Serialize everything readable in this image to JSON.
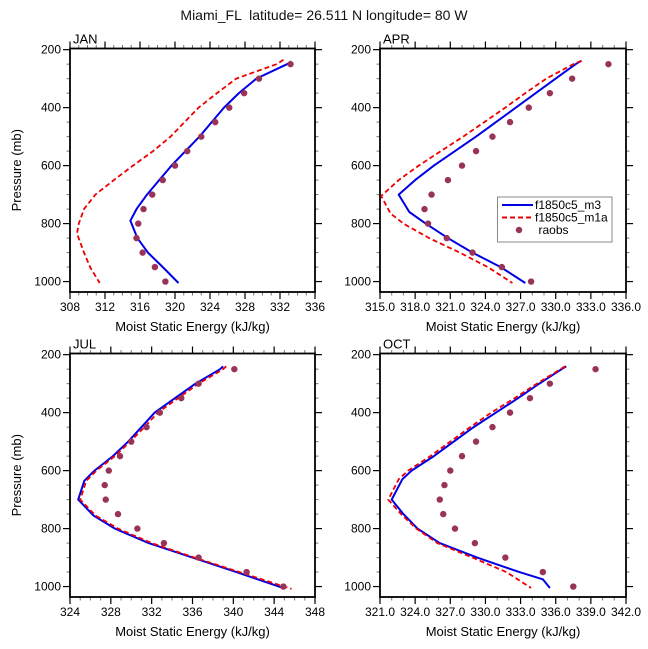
{
  "header": {
    "title": "Miami_FL  latitude= 26.511 N longitude= 80 W"
  },
  "legend": {
    "entries": [
      {
        "label": "f1850c5_m3",
        "color": "#0000e6",
        "marker": "solid-line"
      },
      {
        "label": "f1850c5_m1a",
        "color": "#ee0000",
        "marker": "dashed-line"
      },
      {
        "label": "raobs",
        "color": "#993357",
        "marker": "dot"
      }
    ],
    "location": "inside APR panel, right-center"
  },
  "axes": {
    "pressure_major_ticks": [
      200,
      400,
      600,
      800,
      1000
    ],
    "pressure_minor_step": 50,
    "ytick_labels": [
      "200",
      "400",
      "600",
      "800",
      "1000"
    ]
  },
  "chart_data": [
    {
      "type": "line",
      "title": "JAN",
      "xlabel": "Moist Static Energy (kJ/kg)",
      "ylabel": "Pressure (mb)",
      "xlim": [
        308,
        336
      ],
      "xtick_labels": [
        "308",
        "312",
        "316",
        "320",
        "324",
        "328",
        "332",
        "336"
      ],
      "xtick_minor_step": 1,
      "ylim": [
        200,
        1000
      ],
      "y_axis_inverted": true,
      "series": [
        {
          "name": "f1850c5_m3",
          "style": "solid",
          "color": "#0000e6",
          "points": [
            [
              240,
              333.3
            ],
            [
              250,
              332.8
            ],
            [
              300,
              329.3
            ],
            [
              350,
              327.3
            ],
            [
              400,
              325.6
            ],
            [
              450,
              324.2
            ],
            [
              500,
              322.8
            ],
            [
              550,
              321.2
            ],
            [
              600,
              319.6
            ],
            [
              650,
              318.2
            ],
            [
              700,
              316.8
            ],
            [
              750,
              315.6
            ],
            [
              790,
              314.9
            ],
            [
              850,
              315.7
            ],
            [
              900,
              316.9
            ],
            [
              950,
              318.6
            ],
            [
              1005,
              320.4
            ]
          ]
        },
        {
          "name": "f1850c5_m1a",
          "style": "dashed",
          "color": "#ee0000",
          "points": [
            [
              235,
              332.4
            ],
            [
              250,
              331.6
            ],
            [
              300,
              327.0
            ],
            [
              350,
              324.8
            ],
            [
              400,
              322.7
            ],
            [
              450,
              321.1
            ],
            [
              500,
              319.5
            ],
            [
              550,
              317.5
            ],
            [
              600,
              315.2
            ],
            [
              650,
              313.0
            ],
            [
              700,
              310.9
            ],
            [
              750,
              309.6
            ],
            [
              800,
              309.0
            ],
            [
              835,
              308.8
            ],
            [
              900,
              309.6
            ],
            [
              950,
              310.3
            ],
            [
              1005,
              311.4
            ]
          ]
        },
        {
          "name": "raobs",
          "style": "scatter",
          "color": "#993357",
          "points": [
            [
              250,
              333.2
            ],
            [
              300,
              329.6
            ],
            [
              350,
              327.9
            ],
            [
              400,
              326.2
            ],
            [
              450,
              324.6
            ],
            [
              500,
              323.0
            ],
            [
              550,
              321.4
            ],
            [
              600,
              320.0
            ],
            [
              650,
              318.6
            ],
            [
              700,
              317.4
            ],
            [
              750,
              316.4
            ],
            [
              800,
              315.8
            ],
            [
              850,
              315.6
            ],
            [
              900,
              316.3
            ],
            [
              950,
              317.7
            ],
            [
              1000,
              318.9
            ]
          ]
        }
      ]
    },
    {
      "type": "line",
      "title": "APR",
      "xlabel": "Moist Static Energy (kJ/kg)",
      "ylabel": "Pressure (mb)",
      "xlim": [
        315,
        336
      ],
      "xtick_labels": [
        "315.0",
        "318.0",
        "321.0",
        "324.0",
        "327.0",
        "330.0",
        "333.0",
        "336.0"
      ],
      "xtick_minor_step": 1,
      "ylim": [
        200,
        1000
      ],
      "y_axis_inverted": true,
      "series": [
        {
          "name": "f1850c5_m3",
          "style": "solid",
          "color": "#0000e6",
          "points": [
            [
              238,
              332.2
            ],
            [
              250,
              331.7
            ],
            [
              300,
              330.0
            ],
            [
              350,
              328.3
            ],
            [
              400,
              326.6
            ],
            [
              450,
              324.9
            ],
            [
              500,
              323.2
            ],
            [
              550,
              321.4
            ],
            [
              600,
              319.6
            ],
            [
              650,
              318.0
            ],
            [
              700,
              316.6
            ],
            [
              760,
              317.5
            ],
            [
              800,
              318.9
            ],
            [
              850,
              320.8
            ],
            [
              900,
              322.9
            ],
            [
              950,
              325.3
            ],
            [
              1005,
              327.4
            ]
          ]
        },
        {
          "name": "f1850c5_m1a",
          "style": "dashed",
          "color": "#ee0000",
          "points": [
            [
              238,
              332.2
            ],
            [
              250,
              331.5
            ],
            [
              300,
              329.2
            ],
            [
              350,
              327.4
            ],
            [
              400,
              325.7
            ],
            [
              450,
              323.9
            ],
            [
              500,
              322.1
            ],
            [
              550,
              320.2
            ],
            [
              600,
              318.3
            ],
            [
              650,
              316.6
            ],
            [
              705,
              315.1
            ],
            [
              765,
              315.9
            ],
            [
              800,
              317.0
            ],
            [
              850,
              319.2
            ],
            [
              900,
              321.8
            ],
            [
              950,
              324.2
            ],
            [
              1005,
              326.3
            ]
          ]
        },
        {
          "name": "raobs",
          "style": "scatter",
          "color": "#993357",
          "points": [
            [
              250,
              334.5
            ],
            [
              300,
              331.4
            ],
            [
              350,
              329.5
            ],
            [
              400,
              327.7
            ],
            [
              450,
              326.1
            ],
            [
              500,
              324.6
            ],
            [
              550,
              323.2
            ],
            [
              600,
              322.0
            ],
            [
              650,
              320.8
            ],
            [
              700,
              319.4
            ],
            [
              750,
              318.8
            ],
            [
              800,
              319.1
            ],
            [
              850,
              320.7
            ],
            [
              900,
              322.9
            ],
            [
              950,
              325.4
            ],
            [
              1000,
              327.9
            ]
          ]
        }
      ]
    },
    {
      "type": "line",
      "title": "JUL",
      "xlabel": "Moist Static Energy (kJ/kg)",
      "ylabel": "Pressure (mb)",
      "xlim": [
        324,
        348
      ],
      "xtick_labels": [
        "324",
        "328",
        "332",
        "336",
        "340",
        "344",
        "348"
      ],
      "xtick_minor_step": 1,
      "ylim": [
        200,
        1000
      ],
      "y_axis_inverted": true,
      "series": [
        {
          "name": "f1850c5_m3",
          "style": "solid",
          "color": "#0000e6",
          "points": [
            [
              240,
              339.0
            ],
            [
              250,
              338.7
            ],
            [
              300,
              336.3
            ],
            [
              350,
              334.3
            ],
            [
              400,
              332.3
            ],
            [
              450,
              331.0
            ],
            [
              500,
              329.7
            ],
            [
              550,
              328.2
            ],
            [
              600,
              326.4
            ],
            [
              635,
              325.4
            ],
            [
              700,
              324.8
            ],
            [
              755,
              326.3
            ],
            [
              800,
              328.4
            ],
            [
              850,
              331.7
            ],
            [
              900,
              336.0
            ],
            [
              950,
              340.3
            ],
            [
              1005,
              344.9
            ]
          ]
        },
        {
          "name": "f1850c5_m1a",
          "style": "dashed",
          "color": "#ee0000",
          "points": [
            [
              240,
              339.3
            ],
            [
              250,
              339.0
            ],
            [
              300,
              336.6
            ],
            [
              350,
              334.6
            ],
            [
              400,
              332.6
            ],
            [
              450,
              331.3
            ],
            [
              500,
              329.9
            ],
            [
              550,
              328.4
            ],
            [
              600,
              326.6
            ],
            [
              635,
              325.6
            ],
            [
              700,
              325.0
            ],
            [
              755,
              326.5
            ],
            [
              800,
              328.7
            ],
            [
              850,
              332.0
            ],
            [
              900,
              336.2
            ],
            [
              950,
              340.6
            ],
            [
              1008,
              345.7
            ]
          ]
        },
        {
          "name": "raobs",
          "style": "scatter",
          "color": "#993357",
          "points": [
            [
              250,
              340.1
            ],
            [
              300,
              336.6
            ],
            [
              350,
              334.9
            ],
            [
              400,
              332.8
            ],
            [
              450,
              331.5
            ],
            [
              500,
              330.0
            ],
            [
              550,
              328.9
            ],
            [
              600,
              327.8
            ],
            [
              650,
              327.4
            ],
            [
              700,
              327.5
            ],
            [
              750,
              328.7
            ],
            [
              800,
              330.6
            ],
            [
              850,
              333.2
            ],
            [
              900,
              336.6
            ],
            [
              950,
              341.3
            ],
            [
              1000,
              344.9
            ]
          ]
        }
      ]
    },
    {
      "type": "line",
      "title": "OCT",
      "xlabel": "Moist Static Energy (kJ/kg)",
      "ylabel": "Pressure (mb)",
      "xlim": [
        321,
        342
      ],
      "xtick_labels": [
        "321.0",
        "324.0",
        "327.0",
        "330.0",
        "333.0",
        "336.0",
        "339.0",
        "342.0"
      ],
      "xtick_minor_step": 1,
      "ylim": [
        200,
        1000
      ],
      "y_axis_inverted": true,
      "series": [
        {
          "name": "f1850c5_m3",
          "style": "solid",
          "color": "#0000e6",
          "points": [
            [
              240,
              336.9
            ],
            [
              250,
              336.5
            ],
            [
              300,
              334.6
            ],
            [
              350,
              332.8
            ],
            [
              400,
              330.9
            ],
            [
              450,
              329.0
            ],
            [
              500,
              327.3
            ],
            [
              550,
              325.6
            ],
            [
              600,
              323.7
            ],
            [
              630,
              322.9
            ],
            [
              700,
              322.0
            ],
            [
              750,
              323.0
            ],
            [
              800,
              324.2
            ],
            [
              850,
              326.1
            ],
            [
              900,
              329.3
            ],
            [
              950,
              332.9
            ],
            [
              975,
              334.9
            ],
            [
              1005,
              335.5
            ]
          ]
        },
        {
          "name": "f1850c5_m1a",
          "style": "dashed",
          "color": "#ee0000",
          "points": [
            [
              240,
              336.8
            ],
            [
              250,
              336.4
            ],
            [
              300,
              334.4
            ],
            [
              350,
              332.5
            ],
            [
              400,
              330.5
            ],
            [
              450,
              328.7
            ],
            [
              500,
              327.0
            ],
            [
              550,
              325.3
            ],
            [
              600,
              323.4
            ],
            [
              630,
              322.6
            ],
            [
              700,
              321.7
            ],
            [
              750,
              322.8
            ],
            [
              800,
              324.1
            ],
            [
              850,
              325.9
            ],
            [
              900,
              328.9
            ],
            [
              950,
              331.8
            ],
            [
              1005,
              333.9
            ]
          ]
        },
        {
          "name": "raobs",
          "style": "scatter",
          "color": "#993357",
          "points": [
            [
              250,
              339.4
            ],
            [
              300,
              335.5
            ],
            [
              350,
              333.8
            ],
            [
              400,
              332.1
            ],
            [
              450,
              330.6
            ],
            [
              500,
              329.2
            ],
            [
              550,
              328.0
            ],
            [
              600,
              327.0
            ],
            [
              650,
              326.5
            ],
            [
              700,
              326.1
            ],
            [
              750,
              326.4
            ],
            [
              800,
              327.4
            ],
            [
              850,
              329.1
            ],
            [
              900,
              331.7
            ],
            [
              950,
              334.9
            ],
            [
              1000,
              337.5
            ]
          ]
        }
      ]
    }
  ]
}
